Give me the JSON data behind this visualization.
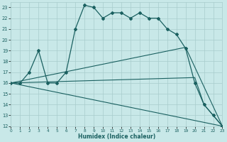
{
  "xlabel": "Humidex (Indice chaleur)",
  "x_ticks": [
    0,
    1,
    2,
    3,
    4,
    5,
    6,
    7,
    8,
    9,
    10,
    11,
    12,
    13,
    14,
    15,
    16,
    17,
    18,
    19,
    20,
    21,
    22,
    23
  ],
  "y_ticks": [
    12,
    13,
    14,
    15,
    16,
    17,
    18,
    19,
    20,
    21,
    22,
    23
  ],
  "xlim": [
    0,
    23
  ],
  "ylim": [
    12,
    23.5
  ],
  "bg_color": "#c8e8e8",
  "grid_color": "#a8cccc",
  "line_color": "#1a6060",
  "curve1_x": [
    0,
    1,
    2,
    3,
    4,
    5,
    6,
    7,
    8,
    9,
    10,
    11,
    12,
    13,
    14,
    15,
    16,
    17,
    18,
    19,
    20,
    21,
    22,
    23
  ],
  "curve1_y": [
    16,
    16,
    17,
    19,
    16,
    16,
    17,
    21,
    23.2,
    23.0,
    22,
    22.5,
    22.5,
    22,
    22.5,
    22,
    22,
    21,
    20.5,
    19.2,
    16,
    14,
    13,
    12
  ],
  "curve2_x": [
    0,
    19,
    23
  ],
  "curve2_y": [
    16,
    19.3,
    12
  ],
  "curve3_x": [
    0,
    20,
    21,
    22,
    23
  ],
  "curve3_y": [
    16,
    16.5,
    14,
    13,
    12
  ],
  "curve4_x": [
    0,
    23
  ],
  "curve4_y": [
    16,
    12
  ]
}
